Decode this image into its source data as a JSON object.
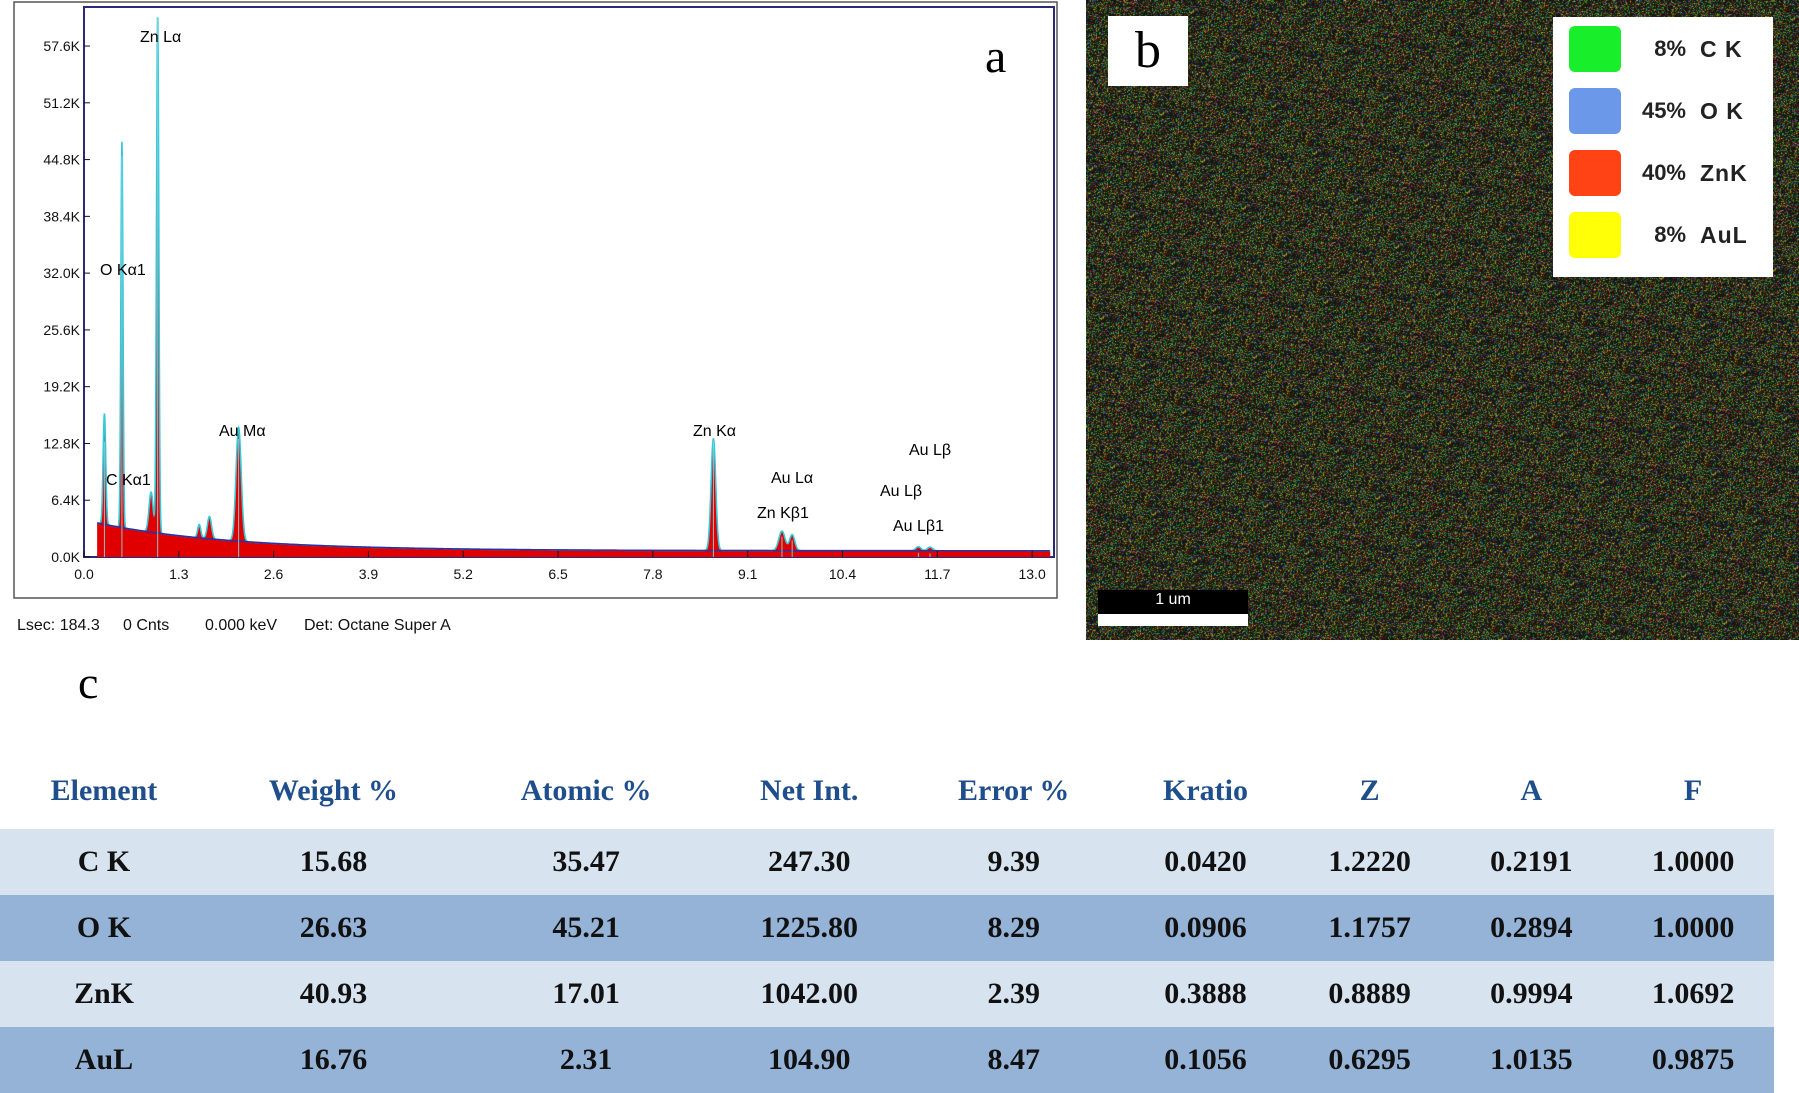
{
  "chart_data": {
    "type": "area",
    "panel_label": "a",
    "xlim": [
      0.0,
      13.3
    ],
    "ylim": [
      0,
      62000
    ],
    "x_ticks": [
      "0.0",
      "1.3",
      "2.6",
      "3.9",
      "5.2",
      "6.5",
      "7.8",
      "9.1",
      "10.4",
      "11.7",
      "13.0"
    ],
    "x_tick_values": [
      0.0,
      1.3,
      2.6,
      3.9,
      5.2,
      6.5,
      7.8,
      9.1,
      10.4,
      11.7,
      13.0
    ],
    "y_ticks": [
      "0.0K",
      "6.4K",
      "12.8K",
      "19.2K",
      "25.6K",
      "32.0K",
      "38.4K",
      "44.8K",
      "51.2K",
      "57.6K"
    ],
    "y_tick_values": [
      0,
      6400,
      12800,
      19200,
      25600,
      32000,
      38400,
      44800,
      51200,
      57600
    ],
    "peaks": [
      {
        "label": "C Kα1",
        "x": 0.28,
        "y": 12500
      },
      {
        "label": "O Kα1",
        "x": 0.52,
        "y": 43500
      },
      {
        "label": "Zn Lα",
        "x": 1.01,
        "y": 58500
      },
      {
        "label": "Au Mα",
        "x": 2.12,
        "y": 12800
      },
      {
        "label": "Zn Kα",
        "x": 8.63,
        "y": 12600
      },
      {
        "label": "Zn Kβ1",
        "x": 9.57,
        "y": 2200
      },
      {
        "label": "Au Lα",
        "x": 9.71,
        "y": 1800
      },
      {
        "label": "Au Lβ",
        "x": 11.44,
        "y": 450
      },
      {
        "label": "Au Lβ1",
        "x": 11.6,
        "y": 400
      }
    ],
    "annotations": {
      "zn_la": "Zn Lα",
      "o_ka1": "O  Kα1",
      "c_ka1": "C  Kα1",
      "au_ma": "Au Mα",
      "zn_ka": "Zn Kα",
      "au_la": "Au Lα",
      "zn_kb1": "Zn Kβ1",
      "au_lb_a": "Au Lβ",
      "au_lb_b": "Au Lβ",
      "au_lb1": "Au Lβ1"
    },
    "grid": false,
    "legend": "none"
  },
  "status_bar": {
    "lsec": "Lsec: 184.3",
    "cnts": "0 Cnts",
    "kev": "0.000 keV",
    "det": "Det: Octane Super A"
  },
  "map_panel": {
    "label": "b",
    "legend": [
      {
        "pct": "8%",
        "element": "C K",
        "color": "#19ee2a"
      },
      {
        "pct": "45%",
        "element": "O K",
        "color": "#6b98e8"
      },
      {
        "pct": "40%",
        "element": "ZnK",
        "color": "#ff4314"
      },
      {
        "pct": "8%",
        "element": "AuL",
        "color": "#ffff08"
      }
    ],
    "scale_bar": "1 um"
  },
  "table_panel": {
    "label": "c",
    "headers": [
      "Element",
      "Weight %",
      "Atomic %",
      "Net Int.",
      "Error %",
      "Kratio",
      "Z",
      "A",
      "F"
    ],
    "rows": [
      [
        "C K",
        "15.68",
        "35.47",
        "247.30",
        "9.39",
        "0.0420",
        "1.2220",
        "0.2191",
        "1.0000"
      ],
      [
        "O K",
        "26.63",
        "45.21",
        "1225.80",
        "8.29",
        "0.0906",
        "1.1757",
        "0.2894",
        "1.0000"
      ],
      [
        "ZnK",
        "40.93",
        "17.01",
        "1042.00",
        "2.39",
        "0.3888",
        "0.8889",
        "0.9994",
        "1.0692"
      ],
      [
        "AuL",
        "16.76",
        "2.31",
        "104.90",
        "8.47",
        "0.1056",
        "0.6295",
        "1.0135",
        "0.9875"
      ]
    ]
  }
}
